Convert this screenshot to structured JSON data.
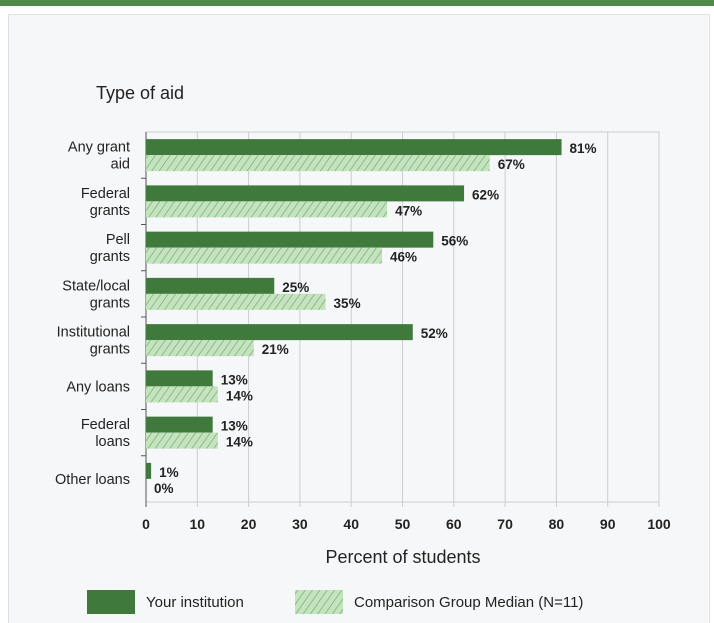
{
  "chart_data": {
    "type": "bar",
    "orientation": "horizontal",
    "subtitle": "Type of aid",
    "xlabel": "Percent of students",
    "xlim": [
      0,
      100
    ],
    "xticks": [
      0,
      10,
      20,
      30,
      40,
      50,
      60,
      70,
      80,
      90,
      100
    ],
    "grid": true,
    "legend_position": "bottom",
    "categories": [
      [
        "Any grant",
        "aid"
      ],
      [
        "Federal",
        "grants"
      ],
      [
        "Pell",
        "grants"
      ],
      [
        "State/local",
        "grants"
      ],
      [
        "Institutional",
        "grants"
      ],
      [
        "Any loans"
      ],
      [
        "Federal",
        "loans"
      ],
      [
        "Other loans"
      ]
    ],
    "series": [
      {
        "name": "Your institution",
        "color": "#3f7a3c",
        "values": [
          81,
          62,
          56,
          25,
          52,
          13,
          13,
          1
        ],
        "labels": [
          "81%",
          "62%",
          "56%",
          "25%",
          "52%",
          "13%",
          "13%",
          "1%"
        ]
      },
      {
        "name": "Comparison Group Median (N=11)",
        "color": "#b9dcb4",
        "pattern": "hatched",
        "values": [
          67,
          47,
          46,
          35,
          21,
          14,
          14,
          0
        ],
        "labels": [
          "67%",
          "47%",
          "46%",
          "35%",
          "21%",
          "14%",
          "14%",
          "0%"
        ]
      }
    ]
  }
}
